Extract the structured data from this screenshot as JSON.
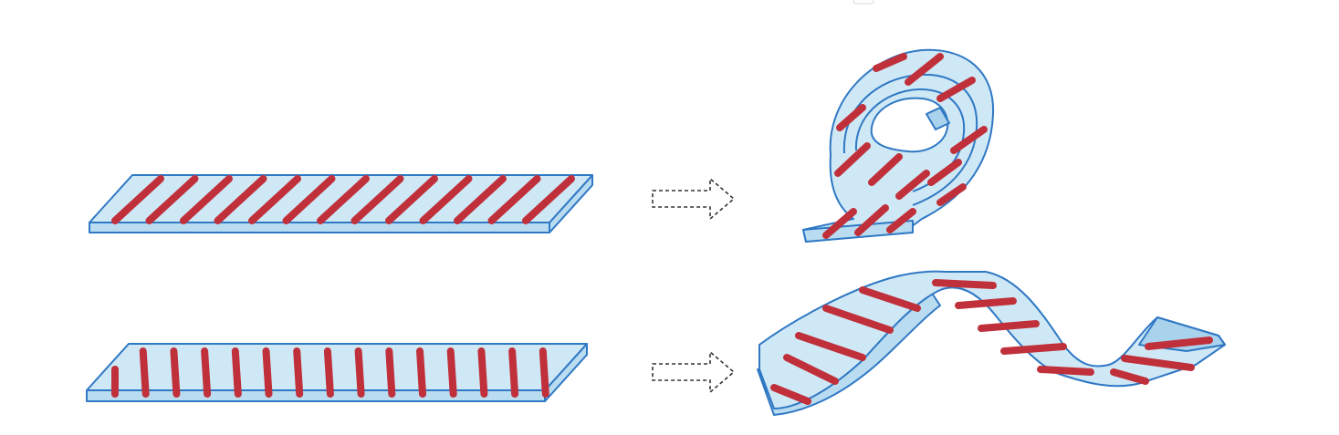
{
  "diagram": {
    "rows": [
      {
        "name": "diagonal-fiber-strip",
        "input_fibers": "diagonal",
        "output_shape": "coil"
      },
      {
        "name": "transverse-fiber-strip",
        "input_fibers": "transverse",
        "output_shape": "wave"
      }
    ],
    "colors": {
      "strip": "#cfe8f6",
      "strip_edge": "#2f78c4",
      "fiber": "#c0303a",
      "arrow": "#333333"
    },
    "icons": [
      "dashed-arrow-icon",
      "dashed-arrow-icon"
    ]
  }
}
